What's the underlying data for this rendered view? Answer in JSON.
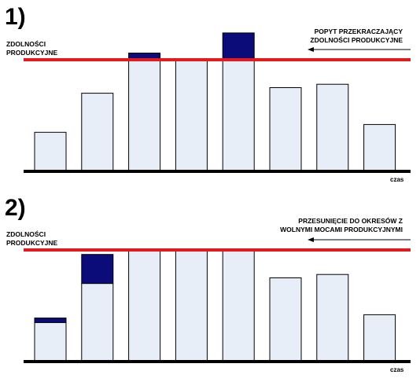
{
  "chart_data": [
    {
      "type": "bar",
      "panel_label": "1)",
      "capacity_label": [
        "ZDOLNOŚCI",
        "PRODUKCYJNE"
      ],
      "annotation": [
        "POPYT PRZEKRACZAJĄCY",
        "ZDOLNOŚCI PRODUKCYJNE"
      ],
      "xlabel": "czas",
      "capacity": 100,
      "ylim": [
        0,
        125
      ],
      "series": [
        {
          "role": "within_capacity",
          "values": [
            35,
            70,
            100,
            100,
            100,
            75,
            78,
            42
          ]
        },
        {
          "role": "excess_demand",
          "values": [
            0,
            0,
            6,
            0,
            24,
            0,
            0,
            0
          ]
        }
      ],
      "colors": {
        "bar_fill": "#e8eef8",
        "bar_edge": "#000000",
        "excess": "#0b0b7a",
        "capacity_line": "#e8191c",
        "axis": "#000000"
      }
    },
    {
      "type": "bar",
      "panel_label": "2)",
      "capacity_label": [
        "ZDOLNOŚCI",
        "PRODUKCYJNE"
      ],
      "annotation": [
        "PRZESUNIĘCIE DO OKRESÓW Z",
        "WOLNYMI MOCAMI PRODUKCYJNYMI"
      ],
      "xlabel": "czas",
      "capacity": 100,
      "ylim": [
        0,
        125
      ],
      "series": [
        {
          "role": "original_demand",
          "values": [
            35,
            70,
            100,
            100,
            100,
            75,
            78,
            42
          ]
        },
        {
          "role": "shifted_demand",
          "values": [
            4,
            26,
            0,
            0,
            0,
            0,
            0,
            0
          ]
        }
      ],
      "colors": {
        "bar_fill": "#e8eef8",
        "bar_edge": "#000000",
        "excess": "#0b0b7a",
        "capacity_line": "#e8191c",
        "axis": "#000000"
      }
    }
  ]
}
